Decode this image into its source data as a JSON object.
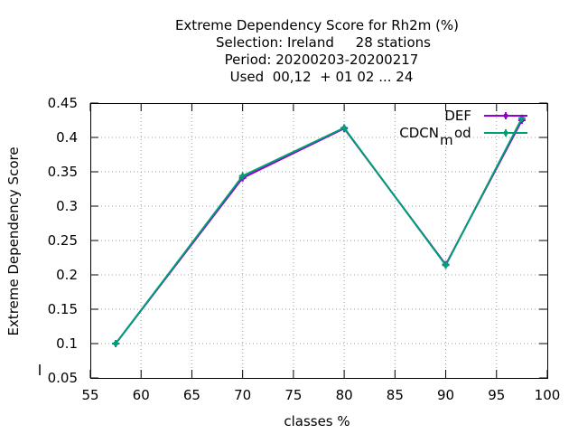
{
  "chart_data": {
    "type": "line",
    "title_lines": [
      "Extreme Dependency Score  for Rh2m (%)",
      "Selection: Ireland     28 stations",
      "Period: 20200203-20200217",
      "Used  00,12  + 01 02 ... 24"
    ],
    "xlabel": "classes %",
    "ylabel": "Extreme Dependency Score",
    "xlim": [
      55,
      100
    ],
    "ylim": [
      0.05,
      0.45
    ],
    "x_ticks": [
      "55",
      "60",
      "65",
      "70",
      "75",
      "80",
      "85",
      "90",
      "95",
      "100"
    ],
    "y_ticks": [
      "0.05",
      "0.1",
      "0.15",
      "0.2",
      "0.25",
      "0.3",
      "0.35",
      "0.4",
      "0.45"
    ],
    "grid": true,
    "legend_position": "top-right",
    "series": [
      {
        "name": "DEF",
        "color": "#9400d3",
        "marker": "plus-dot",
        "x": [
          57.5,
          70,
          80,
          90,
          97.5
        ],
        "values": [
          0.1,
          0.341,
          0.413,
          0.215,
          0.425
        ]
      },
      {
        "name": "CDCN_mod",
        "legend_main": "CDCN",
        "legend_sub": "m",
        "legend_tail": "od",
        "color": "#009e73",
        "marker": "plus-dot",
        "x": [
          57.5,
          70,
          80,
          90,
          97.5
        ],
        "values": [
          0.1,
          0.344,
          0.414,
          0.214,
          0.428
        ]
      }
    ]
  }
}
